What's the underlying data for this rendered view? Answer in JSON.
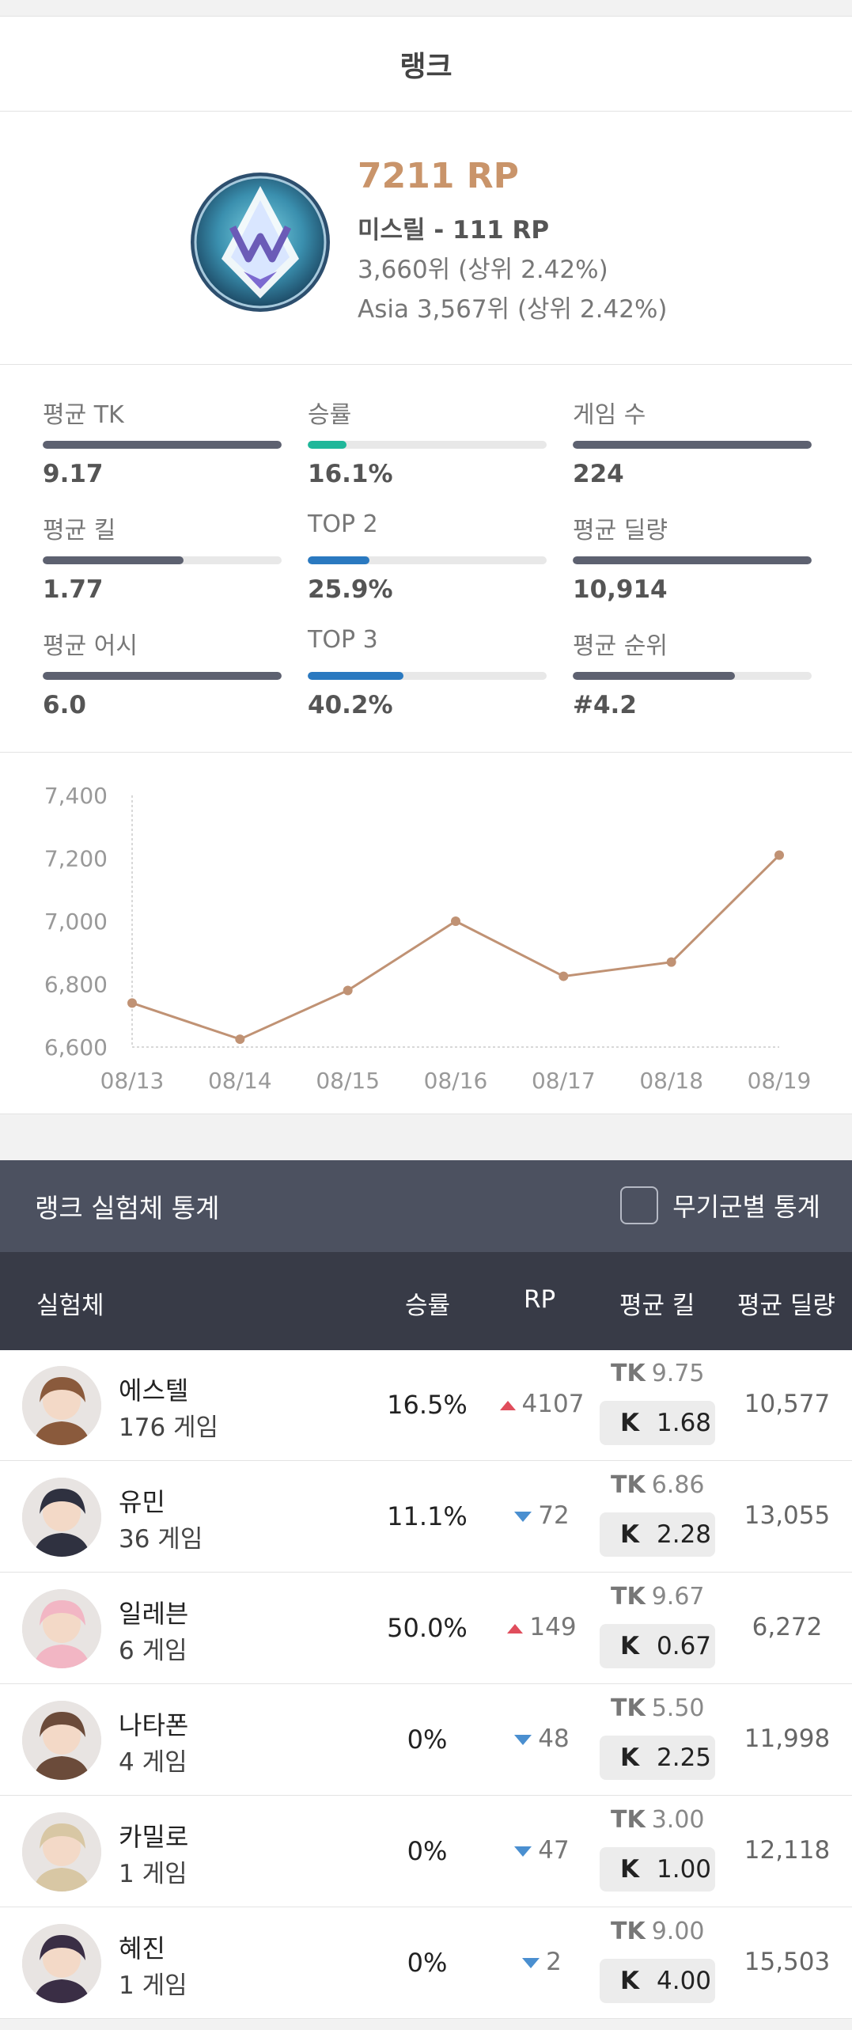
{
  "rank": {
    "title": "랭크",
    "rp": "7211 RP",
    "tier": "미스릴 - 111 RP",
    "rank_global": "3,660위 (상위 2.42%)",
    "rank_region": "Asia 3,567위 (상위 2.42%)"
  },
  "stats": [
    {
      "label": "평균 TK",
      "value": "9.17",
      "fill": 1.0,
      "color": "#5d6170"
    },
    {
      "label": "승률",
      "value": "16.1%",
      "fill": 0.161,
      "color": "#1fb79a"
    },
    {
      "label": "게임 수",
      "value": "224",
      "fill": 1.0,
      "color": "#5d6170"
    },
    {
      "label": "평균 킬",
      "value": "1.77",
      "fill": 0.59,
      "color": "#5d6170"
    },
    {
      "label": "TOP 2",
      "value": "25.9%",
      "fill": 0.259,
      "color": "#2a79c0"
    },
    {
      "label": "평균 딜량",
      "value": "10,914",
      "fill": 1.0,
      "color": "#5d6170"
    },
    {
      "label": "평균 어시",
      "value": "6.0",
      "fill": 1.0,
      "color": "#5d6170"
    },
    {
      "label": "TOP 3",
      "value": "40.2%",
      "fill": 0.402,
      "color": "#2a79c0"
    },
    {
      "label": "평균 순위",
      "value": "#4.2",
      "fill": 0.68,
      "color": "#5d6170"
    }
  ],
  "chart_data": {
    "type": "line",
    "categories": [
      "08/13",
      "08/14",
      "08/15",
      "08/16",
      "08/17",
      "08/18",
      "08/19"
    ],
    "values": [
      6740,
      6625,
      6780,
      7000,
      6825,
      6870,
      7210
    ],
    "ylim": [
      6600,
      7400
    ],
    "yticks": [
      "7,400",
      "7,200",
      "7,000",
      "6,800",
      "6,600"
    ],
    "ytick_values": [
      7400,
      7200,
      7000,
      6800,
      6600
    ],
    "color": "#c09274"
  },
  "champions": {
    "title": "랭크 실험체 통계",
    "weapon_toggle": "무기군별 통계",
    "columns": {
      "name": "실험체",
      "winrate": "승률",
      "rp": "RP",
      "kills": "평균 킬",
      "damage": "평균 딜량"
    },
    "tk_label": "TK",
    "k_label": "K",
    "rows": [
      {
        "name": "에스텔",
        "games": "176 게임",
        "winrate": "16.5%",
        "rp": "4107",
        "rp_dir": "up",
        "tk": "9.75",
        "k": "1.68",
        "damage": "10,577",
        "avatar_color": "#8a5a3c"
      },
      {
        "name": "유민",
        "games": "36 게임",
        "winrate": "11.1%",
        "rp": "72",
        "rp_dir": "down",
        "tk": "6.86",
        "k": "2.28",
        "damage": "13,055",
        "avatar_color": "#2f3140"
      },
      {
        "name": "일레븐",
        "games": "6 게임",
        "winrate": "50.0%",
        "rp": "149",
        "rp_dir": "up",
        "tk": "9.67",
        "k": "0.67",
        "damage": "6,272",
        "avatar_color": "#f2b6c4"
      },
      {
        "name": "나타폰",
        "games": "4 게임",
        "winrate": "0%",
        "rp": "48",
        "rp_dir": "down",
        "tk": "5.50",
        "k": "2.25",
        "damage": "11,998",
        "avatar_color": "#6b4b3a"
      },
      {
        "name": "카밀로",
        "games": "1 게임",
        "winrate": "0%",
        "rp": "47",
        "rp_dir": "down",
        "tk": "3.00",
        "k": "1.00",
        "damage": "12,118",
        "avatar_color": "#d8c7a4"
      },
      {
        "name": "혜진",
        "games": "1 게임",
        "winrate": "0%",
        "rp": "2",
        "rp_dir": "down",
        "tk": "9.00",
        "k": "4.00",
        "damage": "15,503",
        "avatar_color": "#3a2e45"
      }
    ]
  }
}
